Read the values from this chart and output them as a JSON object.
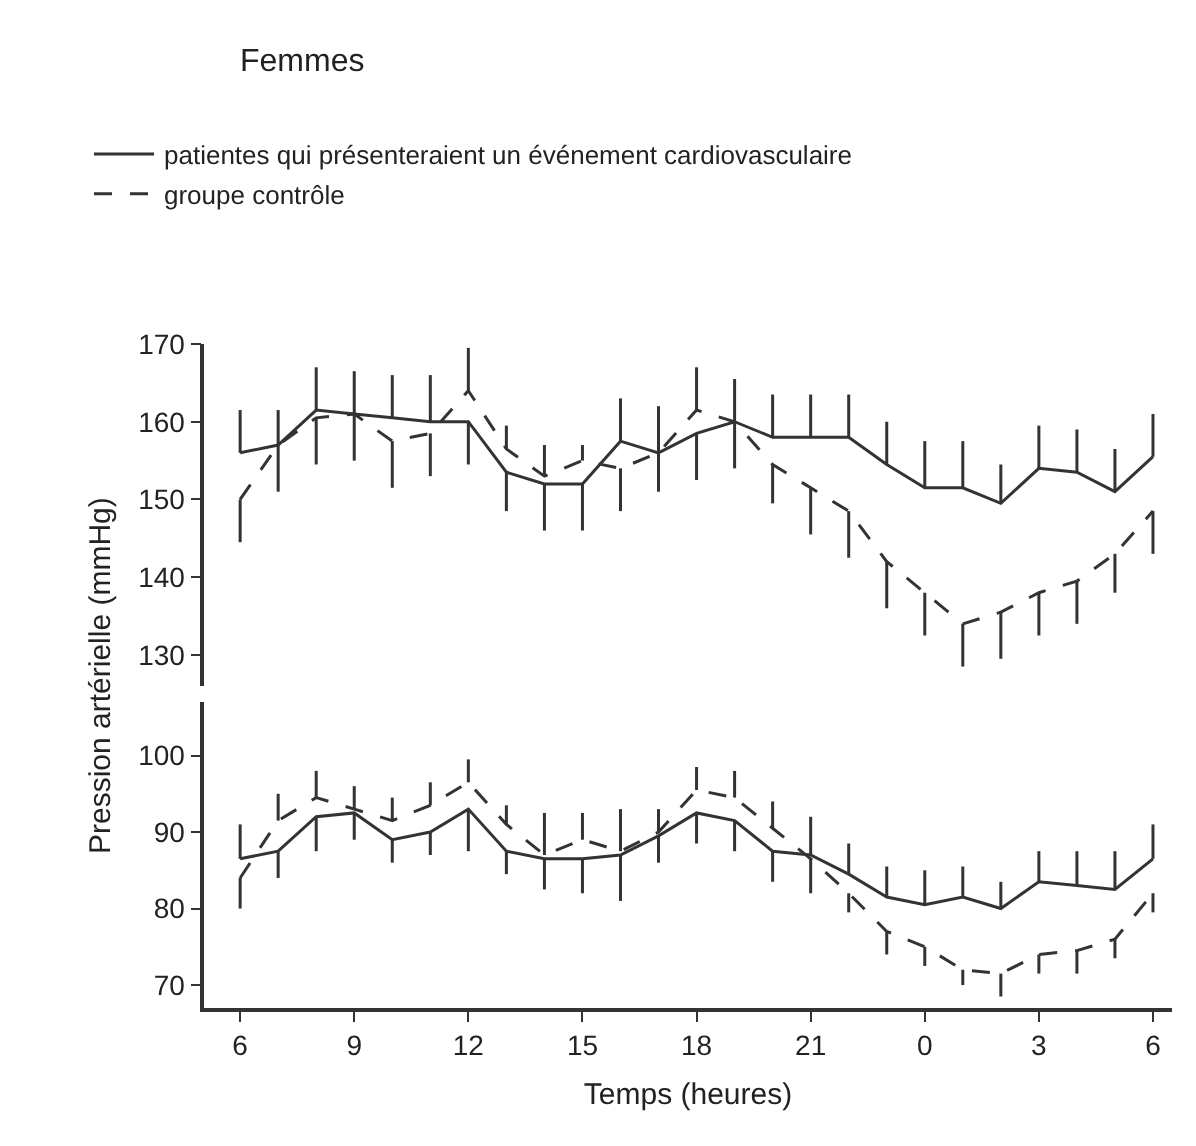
{
  "chart_data": [
    {
      "type": "line",
      "title": "Femmes",
      "categories": [
        "6",
        null,
        null,
        "9",
        null,
        null,
        "12",
        null,
        null,
        "15",
        null,
        null,
        "18",
        null,
        null,
        "21",
        null,
        null,
        "0",
        null,
        null,
        "3",
        null,
        null,
        "6"
      ],
      "ylim": [
        126,
        170
      ],
      "yticks": [
        130,
        140,
        150,
        160,
        170
      ],
      "tick_labels": "y",
      "legend": "top left",
      "grid": false,
      "marker": "none",
      "series": [
        {
          "name": "patientes qui présenteraient un événement cardiovasculaire",
          "color": "#333333",
          "line_style": "solid",
          "values": [
            156,
            157,
            161.5,
            161,
            160.5,
            160,
            160,
            153.5,
            152,
            152,
            157.5,
            156,
            158.5,
            160,
            158,
            158,
            158,
            154.5,
            151.5,
            151.5,
            149.5,
            154,
            153.5,
            151,
            155.5
          ],
          "errors": [
            [
              156,
              161.5
            ],
            [
              157,
              161.5
            ],
            [
              161.5,
              167
            ],
            [
              161,
              166.5
            ],
            [
              160.5,
              166
            ],
            [
              160,
              166
            ],
            [
              154.5,
              160
            ],
            [
              148.5,
              153.5
            ],
            [
              146,
              152
            ],
            [
              146,
              152
            ],
            [
              157.5,
              163
            ],
            [
              156,
              162
            ],
            [
              152.5,
              158.5
            ],
            [
              160,
              165.5
            ],
            [
              158,
              163.5
            ],
            [
              158,
              163.5
            ],
            [
              158,
              163.5
            ],
            [
              154.5,
              160
            ],
            [
              151.5,
              157.5
            ],
            [
              151.5,
              157.5
            ],
            [
              149.5,
              154.5
            ],
            [
              154,
              159.5
            ],
            [
              153.5,
              159
            ],
            [
              151,
              156.5
            ],
            [
              155.5,
              161
            ]
          ]
        },
        {
          "name": "groupe contrôle",
          "color": "#333333",
          "line_style": "dashed",
          "values": [
            150,
            157,
            160.5,
            161,
            157.5,
            158.5,
            164,
            156.5,
            153,
            155,
            154,
            156,
            161.5,
            160,
            154.5,
            151.5,
            148.5,
            142,
            138,
            134,
            135.5,
            138,
            139.5,
            143,
            148.5
          ],
          "errors": [
            [
              144.5,
              150
            ],
            [
              151,
              157
            ],
            [
              154.5,
              160.5
            ],
            [
              155,
              161
            ],
            [
              151.5,
              157.5
            ],
            [
              153,
              158.5
            ],
            [
              164,
              169.5
            ],
            [
              156.5,
              159.5
            ],
            [
              153,
              157
            ],
            [
              155,
              157
            ],
            [
              148.5,
              154
            ],
            [
              151,
              156
            ],
            [
              161.5,
              167
            ],
            [
              154,
              160
            ],
            [
              149.5,
              154.5
            ],
            [
              145.5,
              151.5
            ],
            [
              142.5,
              148.5
            ],
            [
              136,
              142
            ],
            [
              132.5,
              138
            ],
            [
              128.5,
              134
            ],
            [
              129.5,
              135.5
            ],
            [
              132.5,
              138
            ],
            [
              134,
              139.5
            ],
            [
              138,
              143
            ],
            [
              143,
              148.5
            ]
          ]
        }
      ]
    },
    {
      "type": "line",
      "xlabel": "Temps (heures)",
      "ylabel": "Pression artérielle (mmHg)",
      "categories": [
        "6",
        null,
        null,
        "9",
        null,
        null,
        "12",
        null,
        null,
        "15",
        null,
        null,
        "18",
        null,
        null,
        "21",
        null,
        null,
        "0",
        null,
        null,
        "3",
        null,
        null,
        "6"
      ],
      "ylim": [
        67,
        107
      ],
      "yticks": [
        70,
        80,
        90,
        100
      ],
      "grid": false,
      "marker": "none",
      "series": [
        {
          "color": "#333333",
          "line_style": "solid",
          "values": [
            86.5,
            87.5,
            92,
            92.5,
            89,
            90,
            93,
            87.5,
            86.5,
            86.5,
            87,
            89.5,
            92.5,
            91.5,
            87.5,
            87,
            84.5,
            81.5,
            80.5,
            81.5,
            80,
            83.5,
            83,
            82.5,
            86.5
          ],
          "errors": [
            [
              86.5,
              91
            ],
            [
              84,
              87.5
            ],
            [
              87.5,
              92
            ],
            [
              89,
              92.5
            ],
            [
              86,
              89
            ],
            [
              87,
              90
            ],
            [
              87.5,
              93
            ],
            [
              84.5,
              87.5
            ],
            [
              82.5,
              86.5
            ],
            [
              82,
              86.5
            ],
            [
              81,
              87
            ],
            [
              86,
              89.5
            ],
            [
              88.5,
              92.5
            ],
            [
              87.5,
              91.5
            ],
            [
              83.5,
              87.5
            ],
            [
              87,
              92
            ],
            [
              84.5,
              88.5
            ],
            [
              81.5,
              85.5
            ],
            [
              80.5,
              85
            ],
            [
              81.5,
              85.5
            ],
            [
              80,
              83.5
            ],
            [
              83.5,
              87.5
            ],
            [
              83,
              87.5
            ],
            [
              82.5,
              87.5
            ],
            [
              86.5,
              91
            ]
          ]
        },
        {
          "color": "#333333",
          "line_style": "dashed",
          "values": [
            84,
            91.5,
            94.5,
            93,
            91.5,
            93.5,
            96.5,
            91,
            87,
            89,
            87.5,
            90,
            95.5,
            94.5,
            90.5,
            86.5,
            82,
            77,
            75,
            72,
            71.5,
            74,
            74.5,
            76,
            82
          ],
          "errors": [
            [
              80,
              84
            ],
            [
              91.5,
              95
            ],
            [
              94.5,
              98
            ],
            [
              93,
              96
            ],
            [
              91.5,
              94.5
            ],
            [
              93.5,
              96.5
            ],
            [
              96.5,
              99.5
            ],
            [
              91,
              93.5
            ],
            [
              87,
              92.5
            ],
            [
              89,
              92.5
            ],
            [
              87.5,
              93
            ],
            [
              90,
              93
            ],
            [
              95.5,
              98.5
            ],
            [
              94.5,
              98
            ],
            [
              90.5,
              94
            ],
            [
              82,
              86.5
            ],
            [
              79.5,
              82
            ],
            [
              74,
              77
            ],
            [
              72.5,
              75
            ],
            [
              70,
              72
            ],
            [
              68.5,
              71.5
            ],
            [
              71.5,
              74
            ],
            [
              71.5,
              74.5
            ],
            [
              73.5,
              76
            ],
            [
              79.5,
              82
            ]
          ]
        }
      ]
    }
  ]
}
